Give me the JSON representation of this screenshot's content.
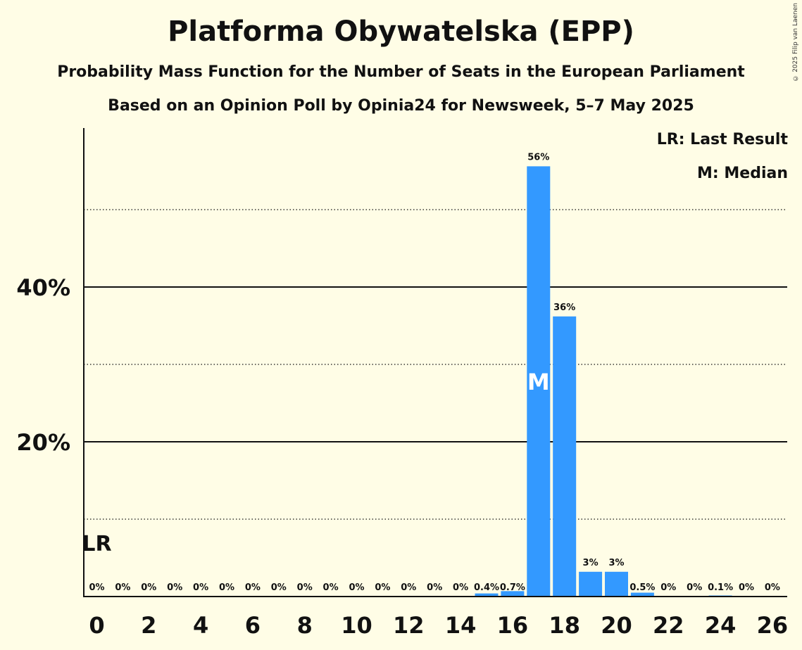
{
  "title": "Platforma Obywatelska (EPP)",
  "subtitle1": "Probability Mass Function for the Number of Seats in the European Parliament",
  "subtitle2": "Based on an Opinion Poll by Opinia24 for Newsweek, 5–7 May 2025",
  "copyright": "© 2025 Filip van Laenen",
  "legend": {
    "last_result": "LR: Last Result",
    "median": "M: Median"
  },
  "colors": {
    "bar": "#3399ff",
    "background": "#fffde6"
  },
  "chart_data": {
    "type": "bar",
    "categories": [
      0,
      1,
      2,
      3,
      4,
      5,
      6,
      7,
      8,
      9,
      10,
      11,
      12,
      13,
      14,
      15,
      16,
      17,
      18,
      19,
      20,
      21,
      22,
      23,
      24,
      25,
      26
    ],
    "values": [
      0,
      0,
      0,
      0,
      0,
      0,
      0,
      0,
      0,
      0,
      0,
      0,
      0,
      0,
      0,
      0.4,
      0.7,
      55.6,
      36.2,
      3.2,
      3.2,
      0.5,
      0,
      0,
      0.1,
      0,
      0
    ],
    "value_labels": [
      "0%",
      "0%",
      "0%",
      "0%",
      "0%",
      "0%",
      "0%",
      "0%",
      "0%",
      "0%",
      "0%",
      "0%",
      "0%",
      "0%",
      "0%",
      "0.4%",
      "0.7%",
      "56%",
      "36%",
      "3%",
      "3%",
      "0.5%",
      "0%",
      "0%",
      "0.1%",
      "0%",
      "0%"
    ],
    "x_tick_labels": [
      "0",
      "2",
      "4",
      "6",
      "8",
      "10",
      "12",
      "14",
      "16",
      "18",
      "20",
      "22",
      "24",
      "26"
    ],
    "y_tick_labels": [
      "20%",
      "40%"
    ],
    "ylim": [
      0,
      60
    ],
    "major_gridlines": [
      20,
      40
    ],
    "minor_gridlines": [
      10,
      30,
      50
    ],
    "last_result_seat": 0,
    "last_result_label": "LR",
    "median_seat": 17,
    "median_label": "M"
  }
}
